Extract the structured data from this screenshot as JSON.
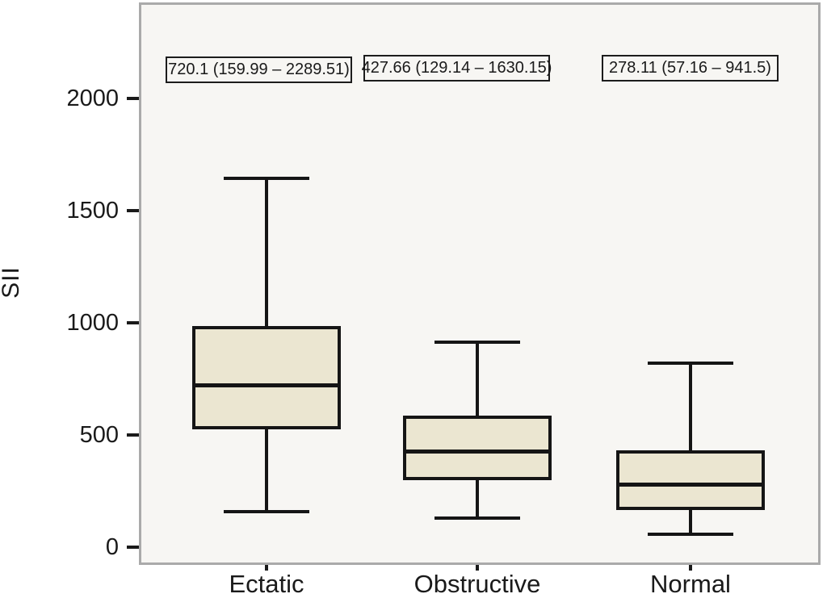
{
  "chart_data": {
    "type": "boxplot",
    "title": "",
    "ylabel": "SII",
    "xlabel": "",
    "y_ticks": [
      0,
      500,
      1000,
      1500,
      2000
    ],
    "ylim": [
      -80,
      2430
    ],
    "grid": false,
    "legend": "none",
    "categories": [
      "Ectatic",
      "Obstructive",
      "Normal"
    ],
    "groups": [
      {
        "name": "Ectatic",
        "annotation": "720.1 (159.99 – 2289.51)",
        "median": 720.1,
        "q1": 525,
        "q3": 985,
        "whisker_low": 160,
        "whisker_high": 1645,
        "range_min": 159.99,
        "range_max": 2289.51
      },
      {
        "name": "Obstructive",
        "annotation": "427.66 (129.14 – 1630.15)",
        "median": 427.66,
        "q1": 300,
        "q3": 585,
        "whisker_low": 130,
        "whisker_high": 915,
        "range_min": 129.14,
        "range_max": 1630.15
      },
      {
        "name": "Normal",
        "annotation": "278.11 (57.16 – 941.5)",
        "median": 278.11,
        "q1": 165,
        "q3": 430,
        "whisker_low": 57,
        "whisker_high": 820,
        "range_min": 57.16,
        "range_max": 941.5
      }
    ],
    "colors": {
      "box_fill": "#ebe6d1",
      "line": "#151515",
      "plot_background": "#f7f6f3",
      "frame_border": "#aaaaaa",
      "page_background": "#ffffff"
    }
  }
}
